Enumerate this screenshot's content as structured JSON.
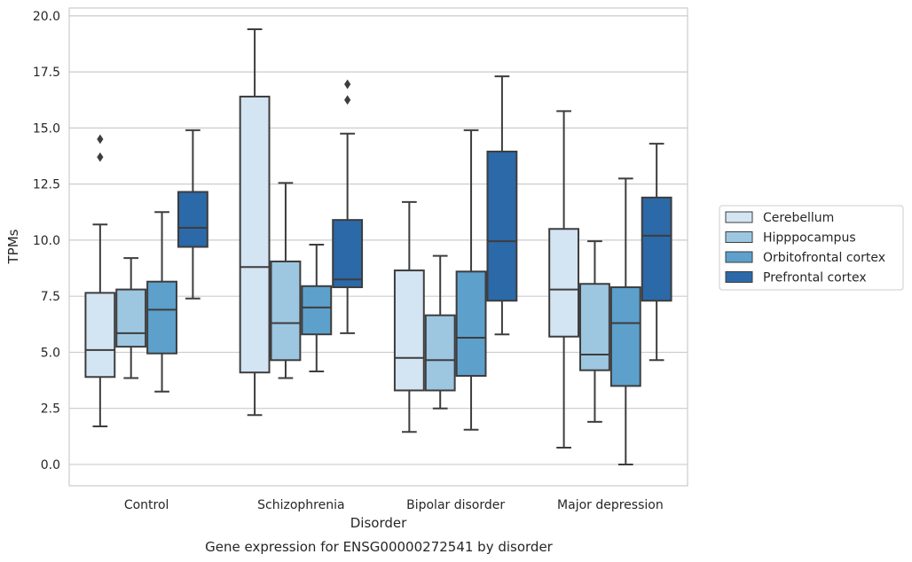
{
  "chart_data": {
    "type": "box",
    "title": "",
    "caption": "Gene expression for ENSG00000272541 by disorder",
    "xlabel": "Disorder",
    "ylabel": "TPMs",
    "ylim": [
      -0.95,
      20.35
    ],
    "yticks": [
      "0.0",
      "2.5",
      "5.0",
      "7.5",
      "10.0",
      "12.5",
      "15.0",
      "17.5",
      "20.0"
    ],
    "grid": "horizontal",
    "legend_position": "right",
    "categories": [
      "Control",
      "Schizophrenia",
      "Bipolar disorder",
      "Major depression"
    ],
    "series": [
      {
        "name": "Cerebellum",
        "color": "#d3e4f3",
        "boxes": [
          {
            "whisker_low": 1.7,
            "q1": 3.9,
            "median": 5.1,
            "q3": 7.65,
            "whisker_high": 10.7,
            "outliers": [
              13.7,
              14.5
            ]
          },
          {
            "whisker_low": 2.2,
            "q1": 4.1,
            "median": 8.8,
            "q3": 16.4,
            "whisker_high": 19.4,
            "outliers": []
          },
          {
            "whisker_low": 1.45,
            "q1": 3.3,
            "median": 4.75,
            "q3": 8.65,
            "whisker_high": 11.7,
            "outliers": []
          },
          {
            "whisker_low": 0.75,
            "q1": 5.7,
            "median": 7.8,
            "q3": 10.5,
            "whisker_high": 15.75,
            "outliers": []
          }
        ]
      },
      {
        "name": "Hipppocampus",
        "color": "#9dc7e1",
        "boxes": [
          {
            "whisker_low": 3.85,
            "q1": 5.25,
            "median": 5.85,
            "q3": 7.8,
            "whisker_high": 9.2,
            "outliers": []
          },
          {
            "whisker_low": 3.85,
            "q1": 4.65,
            "median": 6.3,
            "q3": 9.05,
            "whisker_high": 12.55,
            "outliers": []
          },
          {
            "whisker_low": 2.5,
            "q1": 3.3,
            "median": 4.65,
            "q3": 6.65,
            "whisker_high": 9.3,
            "outliers": []
          },
          {
            "whisker_low": 1.9,
            "q1": 4.2,
            "median": 4.9,
            "q3": 8.05,
            "whisker_high": 9.95,
            "outliers": []
          }
        ]
      },
      {
        "name": "Orbitofrontal cortex",
        "color": "#5da0cc",
        "boxes": [
          {
            "whisker_low": 3.25,
            "q1": 4.95,
            "median": 6.9,
            "q3": 8.15,
            "whisker_high": 11.25,
            "outliers": []
          },
          {
            "whisker_low": 4.15,
            "q1": 5.8,
            "median": 7.0,
            "q3": 7.95,
            "whisker_high": 9.8,
            "outliers": []
          },
          {
            "whisker_low": 1.55,
            "q1": 3.95,
            "median": 5.65,
            "q3": 8.6,
            "whisker_high": 14.9,
            "outliers": []
          },
          {
            "whisker_low": 0.0,
            "q1": 3.5,
            "median": 6.3,
            "q3": 7.9,
            "whisker_high": 12.75,
            "outliers": []
          }
        ]
      },
      {
        "name": "Prefrontal cortex",
        "color": "#2b69a8",
        "boxes": [
          {
            "whisker_low": 7.4,
            "q1": 9.7,
            "median": 10.55,
            "q3": 12.15,
            "whisker_high": 14.9,
            "outliers": []
          },
          {
            "whisker_low": 5.85,
            "q1": 7.9,
            "median": 8.25,
            "q3": 10.9,
            "whisker_high": 14.75,
            "outliers": [
              16.25,
              16.95
            ]
          },
          {
            "whisker_low": 5.8,
            "q1": 7.3,
            "median": 9.95,
            "q3": 13.95,
            "whisker_high": 17.3,
            "outliers": []
          },
          {
            "whisker_low": 4.65,
            "q1": 7.3,
            "median": 10.2,
            "q3": 11.9,
            "whisker_high": 14.3,
            "outliers": []
          }
        ]
      }
    ]
  }
}
